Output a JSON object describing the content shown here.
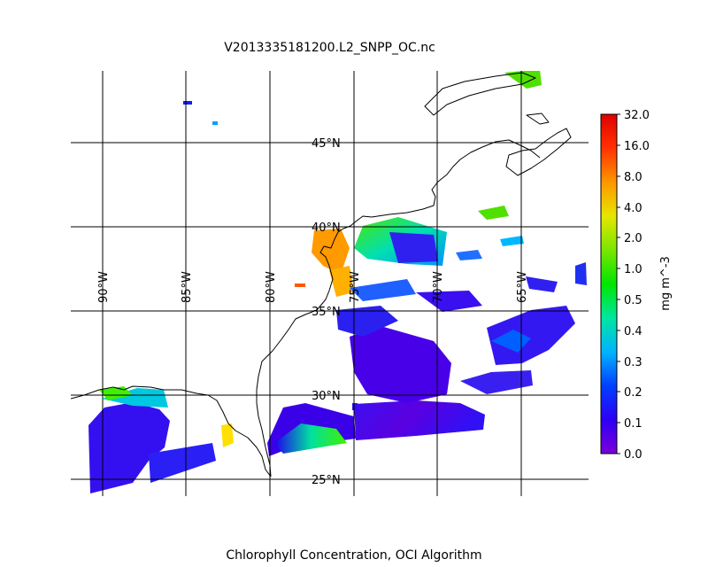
{
  "title": "V2013335181200.L2_SNPP_OC.nc",
  "caption": "Chlorophyll Concentration, OCI Algorithm",
  "map": {
    "projection": "cylindrical",
    "lon_range": [
      -94,
      -56
    ],
    "lat_range": [
      24,
      44
    ],
    "lat_labels": [
      "45°N",
      "40°N",
      "35°N",
      "30°N",
      "25°N"
    ],
    "lon_labels": [
      "90°W",
      "85°W",
      "80°W",
      "75°W",
      "70°W",
      "65°W"
    ]
  },
  "colorbar": {
    "label": "mg m^-3",
    "scale": "log",
    "ticks": [
      "32.0",
      "16.0",
      "8.0",
      "4.0",
      "2.0",
      "1.0",
      "0.5",
      "0.4",
      "0.3",
      "0.2",
      "0.1",
      "0.0"
    ],
    "colormap": [
      "#7a00d9",
      "#2d00f5",
      "#0040ff",
      "#00b4ff",
      "#00e6a0",
      "#00e600",
      "#7ae600",
      "#e6e600",
      "#ff9600",
      "#ff3200",
      "#e00000"
    ]
  }
}
